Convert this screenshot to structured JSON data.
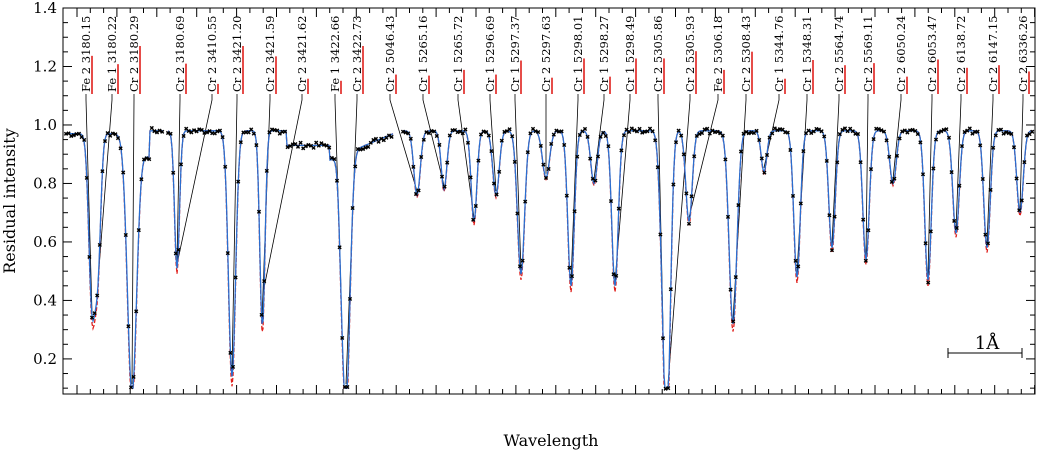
{
  "chart_data": {
    "type": "line",
    "title": "",
    "xlabel": "Wavelength",
    "ylabel": "Residual intensity",
    "ylim": [
      0.08,
      1.4
    ],
    "yticks": [
      0.2,
      0.4,
      0.6,
      0.8,
      1.0,
      1.2,
      1.4
    ],
    "ytick_labels": [
      "0.2",
      "0.4",
      "0.6",
      "0.8",
      "1.0",
      "1.2",
      "1.4"
    ],
    "x_tick_labels_shown": false,
    "grid": false,
    "legend": "none",
    "scale_bar": {
      "label": "1Å"
    },
    "colors": {
      "observed": "#000000",
      "model_blue": "#2a6fd0",
      "model_red": "#e0201c",
      "line_marker": "#e0201c"
    },
    "series": [
      {
        "marker": "x",
        "color": "#000000"
      },
      {
        "line": "solid",
        "color": "#2a6fd0"
      },
      {
        "line": "dashed",
        "color": "#e0201c"
      }
    ],
    "line_ids": [
      {
        "label": "Fe 2 3180.15",
        "depth": 0.42
      },
      {
        "label": "Fe 1 3180.22",
        "depth": 0.58
      },
      {
        "label": "Cr 2 3180.29",
        "depth": 0.12
      },
      {
        "label": "Cr 2 3180.69",
        "depth": 0.57
      },
      {
        "label": "Cr 2 3410.55",
        "depth": 0.96
      },
      {
        "label": "Cr 2 3421.20",
        "depth": 0.16
      },
      {
        "label": "Cr 2 3421.59",
        "depth": 0.43
      },
      {
        "label": "Cr 2 3421.62",
        "depth": 0.86
      },
      {
        "label": "Fe 1 3422.66",
        "depth": 0.9
      },
      {
        "label": "Cr 2 3422.73",
        "depth": 0.14
      },
      {
        "label": "Cr 2 5046.43",
        "depth": 0.78
      },
      {
        "label": "Cr 1 5265.16",
        "depth": 0.8
      },
      {
        "label": "Cr 1 5265.72",
        "depth": 0.69
      },
      {
        "label": "Cr 1 5296.69",
        "depth": 0.78
      },
      {
        "label": "Cr 1 5297.37",
        "depth": 0.51
      },
      {
        "label": "Cr 2 5297.63",
        "depth": 0.84
      },
      {
        "label": "Cr 1 5298.01",
        "depth": 0.47
      },
      {
        "label": "Cr 1 5298.27",
        "depth": 0.82
      },
      {
        "label": "Cr 1 5298.49",
        "depth": 0.47
      },
      {
        "label": "Cr 2 5305.86",
        "depth": 0.47
      },
      {
        "label": "Cr 2 5305.93",
        "depth": 0.33
      },
      {
        "label": "Fe 2 5306.18",
        "depth": 0.69
      },
      {
        "label": "Cr 2 5308.43",
        "depth": 0.34
      },
      {
        "label": "Cr 1 5344.76",
        "depth": 0.86
      },
      {
        "label": "Cr 1 5348.31",
        "depth": 0.5
      },
      {
        "label": "Cr 2 5564.74",
        "depth": 0.6
      },
      {
        "label": "Cr 2 5569.11",
        "depth": 0.56
      },
      {
        "label": "Cr 2 6050.24",
        "depth": 0.82
      },
      {
        "label": "Cr 2 6053.47",
        "depth": 0.49
      },
      {
        "label": "Cr 2 6138.72",
        "depth": 0.65
      },
      {
        "label": "Cr 2 6147.15",
        "depth": 0.6
      },
      {
        "label": "Cr 2 6336.26",
        "depth": 0.72
      }
    ]
  }
}
